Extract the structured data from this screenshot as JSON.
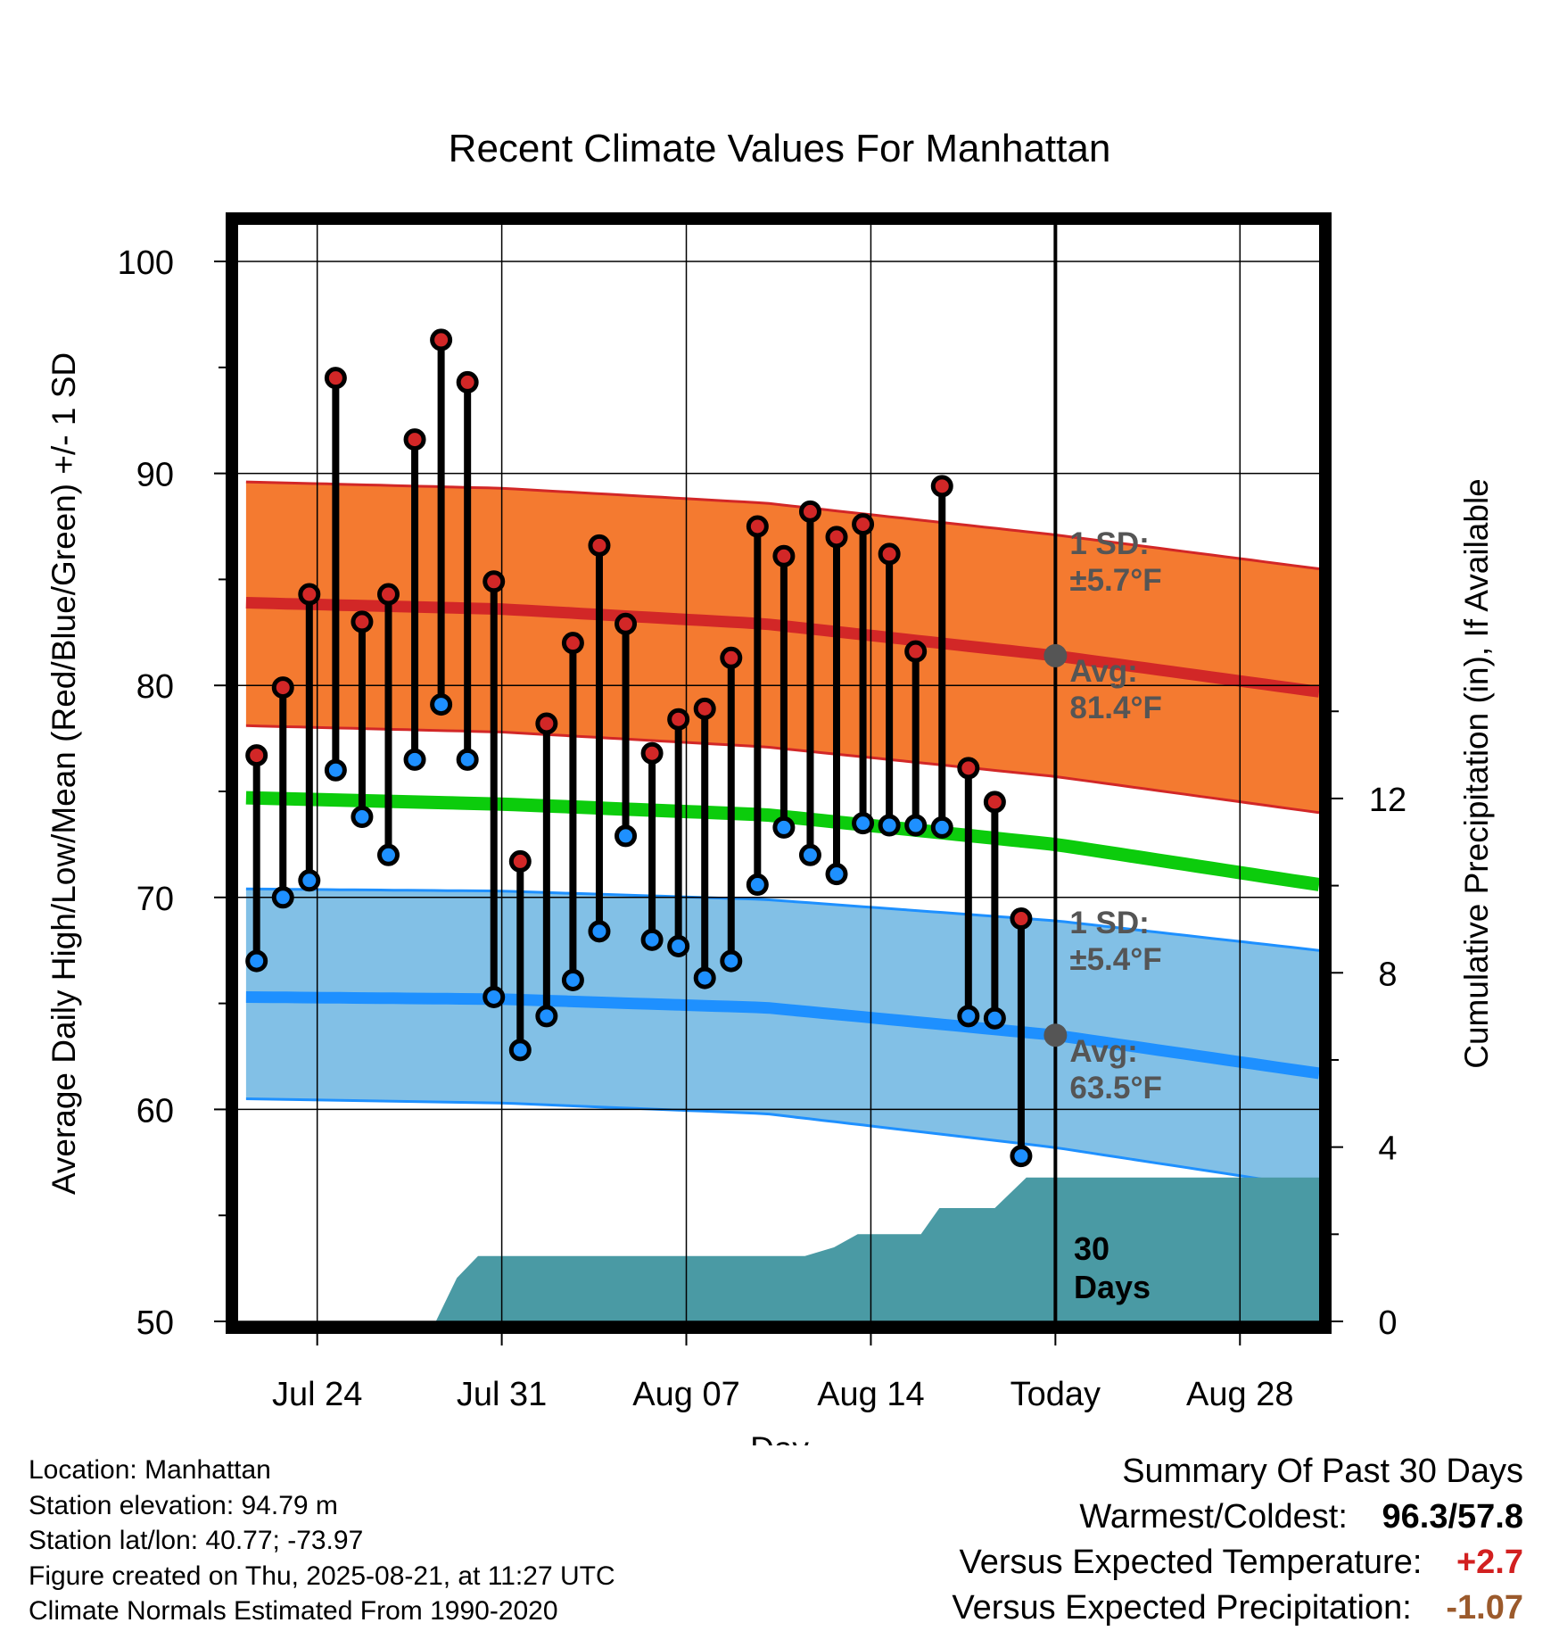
{
  "title": "Recent Climate Values For Manhattan",
  "chart_data": {
    "type": "line",
    "title": "Recent Climate Values For Manhattan",
    "xlabel": "Day",
    "ylabel": "Average Daily High/Low/Mean (Red/Blue/Green) +/- 1 SD",
    "y2label": "Cumulative Precipitation (in), If Available",
    "ylim": [
      50,
      100
    ],
    "y2lim": [
      0,
      24.4
    ],
    "yticks": [
      "50",
      "60",
      "70",
      "80",
      "90",
      "100"
    ],
    "y2ticks": [
      "0",
      "4",
      "8",
      "12"
    ],
    "xticks": [
      {
        "day": 3,
        "label": "Jul 24"
      },
      {
        "day": 10,
        "label": "Jul 31"
      },
      {
        "day": 17,
        "label": "Aug 07"
      },
      {
        "day": 24,
        "label": "Aug 14"
      },
      {
        "day": 31,
        "label": "Today"
      },
      {
        "day": 38,
        "label": "Aug 28"
      }
    ],
    "x_note": "day 0 = Jul 21; today = Aug 21",
    "xlim": [
      0,
      41
    ],
    "grid": true,
    "daily_high": [
      76.7,
      79.9,
      84.3,
      94.5,
      83.0,
      84.3,
      91.6,
      96.3,
      94.3,
      84.9,
      71.7,
      78.2,
      82.0,
      86.6,
      82.9,
      76.8,
      78.4,
      78.9,
      81.3,
      87.5,
      86.1,
      88.2,
      87.0,
      87.6,
      86.2,
      81.6,
      89.4,
      76.1,
      74.5,
      69.0
    ],
    "daily_low": [
      67.0,
      70.0,
      70.8,
      76.0,
      73.8,
      72.0,
      76.5,
      79.1,
      76.5,
      65.3,
      62.8,
      64.4,
      66.1,
      68.4,
      72.9,
      68.0,
      67.7,
      66.2,
      67.0,
      70.6,
      73.3,
      72.0,
      71.1,
      73.5,
      73.4,
      73.4,
      73.3,
      64.4,
      64.3,
      57.8
    ],
    "obs_start_day": 0.7,
    "normal_days": [
      0.3,
      10,
      20,
      31,
      41
    ],
    "normal_high": [
      83.9,
      83.6,
      82.9,
      81.4,
      79.7
    ],
    "normal_high_upper": [
      89.6,
      89.3,
      88.6,
      87.1,
      85.5
    ],
    "normal_high_lower": [
      78.1,
      77.8,
      77.1,
      75.7,
      74.0
    ],
    "normal_mean": [
      74.7,
      74.4,
      73.9,
      72.5,
      70.6
    ],
    "normal_low": [
      65.3,
      65.2,
      64.8,
      63.5,
      61.7
    ],
    "normal_low_upper": [
      70.4,
      70.3,
      69.9,
      68.9,
      67.5
    ],
    "normal_low_lower": [
      60.5,
      60.3,
      59.8,
      58.2,
      56.3
    ],
    "precip_cumulative": {
      "x": [
        0,
        7.5,
        8.3,
        9.1,
        21.5,
        22.6,
        23.5,
        25.9,
        26.6,
        28.7,
        29.9,
        41
      ],
      "y": [
        0,
        0,
        1.0,
        1.5,
        1.5,
        1.7,
        2.0,
        2.0,
        2.6,
        2.6,
        3.3,
        3.3
      ]
    },
    "today_markers": {
      "high": 81.4,
      "low": 63.5
    },
    "annotations": {
      "high_sd_line1": "1 SD:",
      "high_sd_line2": "±5.7°F",
      "high_avg_line1": "Avg:",
      "high_avg_line2": "81.4°F",
      "low_sd_line1": "1 SD:",
      "low_sd_line2": "±5.4°F",
      "low_avg_line1": "Avg:",
      "low_avg_line2": "63.5°F",
      "days_line1": "30",
      "days_line2": "Days"
    },
    "colors": {
      "high": "#d22727",
      "high_band": "#f47a30",
      "mean": "#0ccc0c",
      "low": "#1e90ff",
      "low_band": "#82c0e6",
      "precip": "#4a9aa4",
      "marker_today": "#555555"
    }
  },
  "info": {
    "location": "Location: Manhattan",
    "elevation": "Station elevation: 94.79 m",
    "latlon": "Station lat/lon: 40.77; -73.97",
    "created": "Figure created on Thu, 2025-08-21, at 11:27 UTC",
    "normals": "Climate Normals Estimated From 1990-2020"
  },
  "summary": {
    "heading": "Summary Of Past 30 Days",
    "warm_cold_label": "Warmest/Coldest:",
    "warm_value": "96.3",
    "cold_value": "57.8",
    "temp_label": "Versus Expected Temperature:",
    "temp_value": "+2.7",
    "precip_label": "Versus Expected Precipitation:",
    "precip_value": "-1.07"
  }
}
